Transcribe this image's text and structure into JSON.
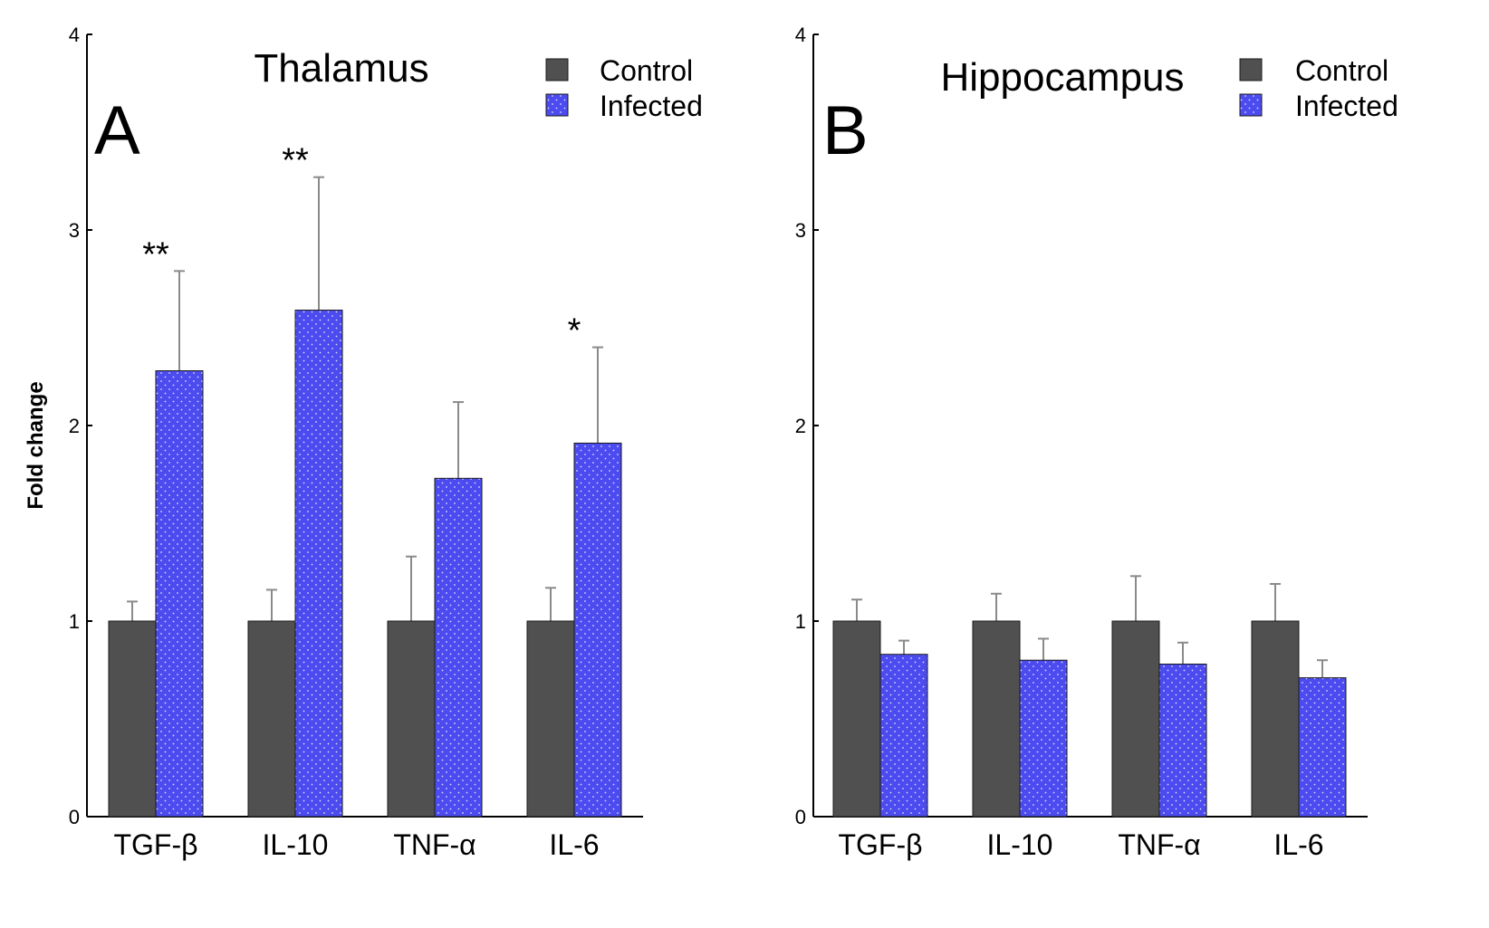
{
  "figure": {
    "ylabel": "Fold change",
    "legend": {
      "control": "Control",
      "infected": "Infected"
    },
    "colors": {
      "control": "#505050",
      "infected": "#4b4bf0",
      "axis": "#000000",
      "error": "#8a8a8a"
    }
  },
  "chart_data": [
    {
      "type": "bar",
      "panel_label": "A",
      "title": "Thalamus",
      "categories": [
        "TGF-β",
        "IL-10",
        "TNF-α",
        "IL-6"
      ],
      "series": [
        {
          "name": "Control",
          "values": [
            1.0,
            1.0,
            1.0,
            1.0
          ],
          "errors": [
            0.1,
            0.16,
            0.33,
            0.17
          ]
        },
        {
          "name": "Infected",
          "values": [
            2.28,
            2.59,
            1.73,
            1.91
          ],
          "errors": [
            0.51,
            0.68,
            0.39,
            0.49
          ]
        }
      ],
      "significance": [
        "**",
        "**",
        "",
        "*"
      ],
      "yticks": [
        "0",
        "1",
        "2",
        "3",
        "4"
      ],
      "ylim": [
        0,
        4
      ],
      "ylabel": "Fold change",
      "legend_position": "top-right"
    },
    {
      "type": "bar",
      "panel_label": "B",
      "title": "Hippocampus",
      "categories": [
        "TGF-β",
        "IL-10",
        "TNF-α",
        "IL-6"
      ],
      "series": [
        {
          "name": "Control",
          "values": [
            1.0,
            1.0,
            1.0,
            1.0
          ],
          "errors": [
            0.11,
            0.14,
            0.23,
            0.19
          ]
        },
        {
          "name": "Infected",
          "values": [
            0.83,
            0.8,
            0.78,
            0.71
          ],
          "errors": [
            0.07,
            0.11,
            0.11,
            0.09
          ]
        }
      ],
      "significance": [
        "",
        "",
        "",
        ""
      ],
      "yticks": [
        "0",
        "1",
        "2",
        "3",
        "4"
      ],
      "ylim": [
        0,
        4
      ],
      "ylabel": "",
      "legend_position": "top-right"
    }
  ]
}
